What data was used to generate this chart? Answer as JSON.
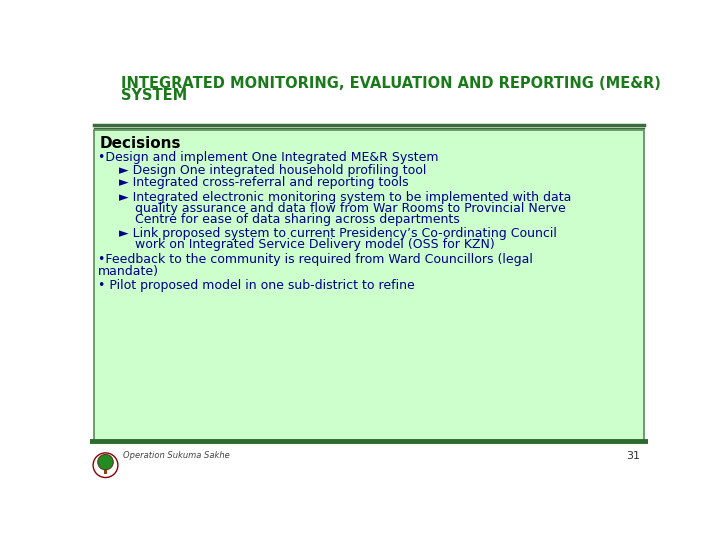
{
  "title_line1": "INTEGRATED MONITORING, EVALUATION AND REPORTING (ME&R)",
  "title_line2": "SYSTEM",
  "title_color": "#1a7a1a",
  "title_bg": "#ffffff",
  "header_bar_color": "#3a6b3a",
  "section_heading": "Decisions",
  "section_bg": "#ccffcc",
  "section_border": "#5a8a5a",
  "body_text_color": "#00008B",
  "bullet1": "Design and implement One Integrated ME&R System",
  "sub1": "Design One integrated household profiling tool",
  "sub2": " Integrated cross-referral and reporting tools",
  "sub3_l1": "Integrated electronic monitoring system to be implemented with data",
  "sub3_l2": "quality assurance and data flow from War Rooms to Provincial Nerve",
  "sub3_l3": "Centre for ease of data sharing across departments",
  "sub4_l1": "Link proposed system to current Presidency’s Co-ordinating Council",
  "sub4_l2": "work on Integrated Service Delivery model (OSS for KZN)",
  "bullet2_l1": "Feedback to the community is required from Ward Councillors (legal",
  "bullet2_l2": "mandate)",
  "bullet3": "Pilot proposed model in one sub-district to refine",
  "footer_text": "Operation Sukuma Sakhe",
  "page_number": "31",
  "footer_bar_color": "#2d6a2d",
  "footer_bg": "#ffffff"
}
